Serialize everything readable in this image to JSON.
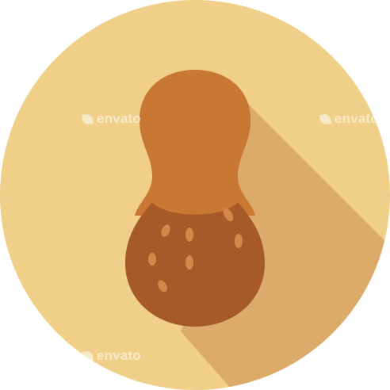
{
  "watermark": {
    "text": "envato",
    "icon": "envato-leaf-icon"
  },
  "colors": {
    "page_background": "#ffffff",
    "circle_background": "#f0d088",
    "long_shadow": "#dcab6a",
    "shell_top": "#c87832",
    "shell_bottom": "#a55a27",
    "shell_dots": "#d6864a"
  }
}
